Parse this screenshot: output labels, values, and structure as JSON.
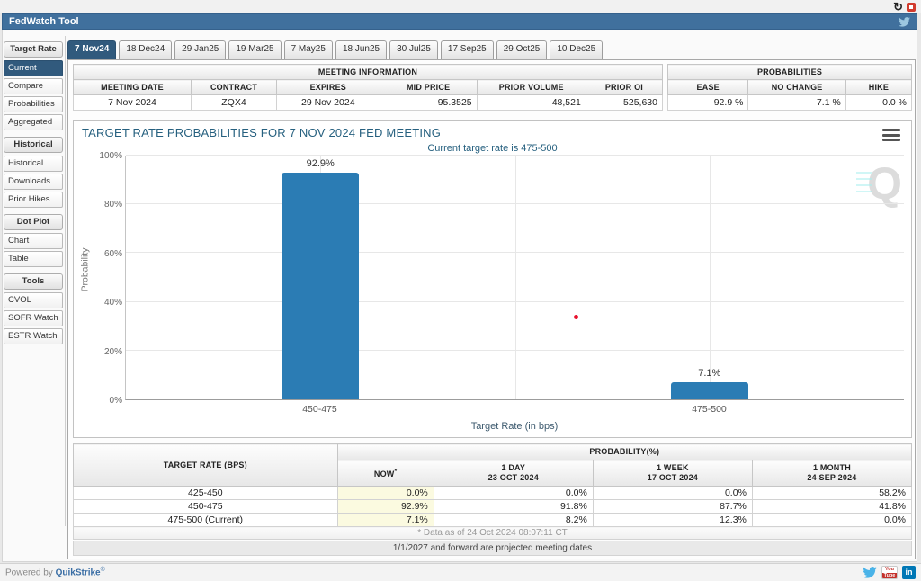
{
  "window": {
    "title": "FedWatch Tool"
  },
  "top_icons": {
    "refresh_glyph": "↻"
  },
  "sidebar": {
    "groups": [
      {
        "header": "Target Rate",
        "items": [
          {
            "label": "Current",
            "selected": true
          },
          {
            "label": "Compare",
            "selected": false
          },
          {
            "label": "Probabilities",
            "selected": false
          },
          {
            "label": "Aggregated",
            "selected": false
          }
        ]
      },
      {
        "header": "Historical",
        "items": [
          {
            "label": "Historical",
            "selected": false
          },
          {
            "label": "Downloads",
            "selected": false
          },
          {
            "label": "Prior Hikes",
            "selected": false
          }
        ]
      },
      {
        "header": "Dot Plot",
        "items": [
          {
            "label": "Chart",
            "selected": false
          },
          {
            "label": "Table",
            "selected": false
          }
        ]
      },
      {
        "header": "Tools",
        "items": [
          {
            "label": "CVOL",
            "selected": false
          },
          {
            "label": "SOFR Watch",
            "selected": false
          },
          {
            "label": "ESTR Watch",
            "selected": false
          }
        ]
      }
    ]
  },
  "tabs": {
    "items": [
      "7 Nov24",
      "18 Dec24",
      "29 Jan25",
      "19 Mar25",
      "7 May25",
      "18 Jun25",
      "30 Jul25",
      "17 Sep25",
      "29 Oct25",
      "10 Dec25"
    ],
    "selected_index": 0
  },
  "meeting_info": {
    "title": "MEETING INFORMATION",
    "columns": [
      "MEETING DATE",
      "CONTRACT",
      "EXPIRES",
      "MID PRICE",
      "PRIOR VOLUME",
      "PRIOR OI"
    ],
    "values": [
      "7 Nov 2024",
      "ZQX4",
      "29 Nov 2024",
      "95.3525",
      "48,521",
      "525,630"
    ]
  },
  "probabilities_summary": {
    "title": "PROBABILITIES",
    "columns": [
      "EASE",
      "NO CHANGE",
      "HIKE"
    ],
    "values": [
      "92.9 %",
      "7.1 %",
      "0.0 %"
    ]
  },
  "chart_data": {
    "type": "bar",
    "title": "TARGET RATE PROBABILITIES FOR 7 NOV 2024 FED MEETING",
    "subtitle": "Current target rate is 475-500",
    "categories": [
      "450-475",
      "475-500"
    ],
    "values": [
      92.9,
      7.1
    ],
    "value_labels": [
      "92.9%",
      "7.1%"
    ],
    "xlabel": "Target Rate (in bps)",
    "ylabel": "Probability",
    "ylim": [
      0,
      100
    ],
    "yticks": [
      "0%",
      "20%",
      "40%",
      "60%",
      "80%",
      "100%"
    ],
    "grid": true,
    "legend": "none",
    "bar_color": "#2b7cb4",
    "annotations": [
      {
        "type": "dot",
        "color": "#e8112d",
        "x_frac": 0.578,
        "y_value": 33.5
      }
    ]
  },
  "probability_table": {
    "row_header": "TARGET RATE (BPS)",
    "group_header": "PROBABILITY(%)",
    "columns": [
      {
        "line1": "NOW",
        "sup": "*",
        "line2": ""
      },
      {
        "line1": "1 DAY",
        "sup": "",
        "line2": "23 OCT 2024"
      },
      {
        "line1": "1 WEEK",
        "sup": "",
        "line2": "17 OCT 2024"
      },
      {
        "line1": "1 MONTH",
        "sup": "",
        "line2": "24 SEP 2024"
      }
    ],
    "rows": [
      {
        "label": "425-450",
        "values": [
          "0.0%",
          "0.0%",
          "0.0%",
          "58.2%"
        ]
      },
      {
        "label": "450-475",
        "values": [
          "92.9%",
          "91.8%",
          "87.7%",
          "41.8%"
        ]
      },
      {
        "label": "475-500 (Current)",
        "values": [
          "7.1%",
          "8.2%",
          "12.3%",
          "0.0%"
        ]
      }
    ],
    "footnote": "* Data as of 24 Oct 2024 08:07:11 CT"
  },
  "projected_note": "1/1/2027 and forward are projected meeting dates",
  "footer": {
    "powered_prefix": "Powered by",
    "brand": "QuikStrike",
    "reg": "®",
    "youtube_top": "You",
    "youtube_bottom": "Tube",
    "linkedin_label": "in"
  },
  "colors": {
    "accent_navy": "#315a7d",
    "header_bar": "#40709d",
    "bar_blue": "#2b7cb4",
    "title_teal": "#26607f",
    "now_column_bg": "#fbfae0",
    "marker_red": "#e8112d"
  }
}
